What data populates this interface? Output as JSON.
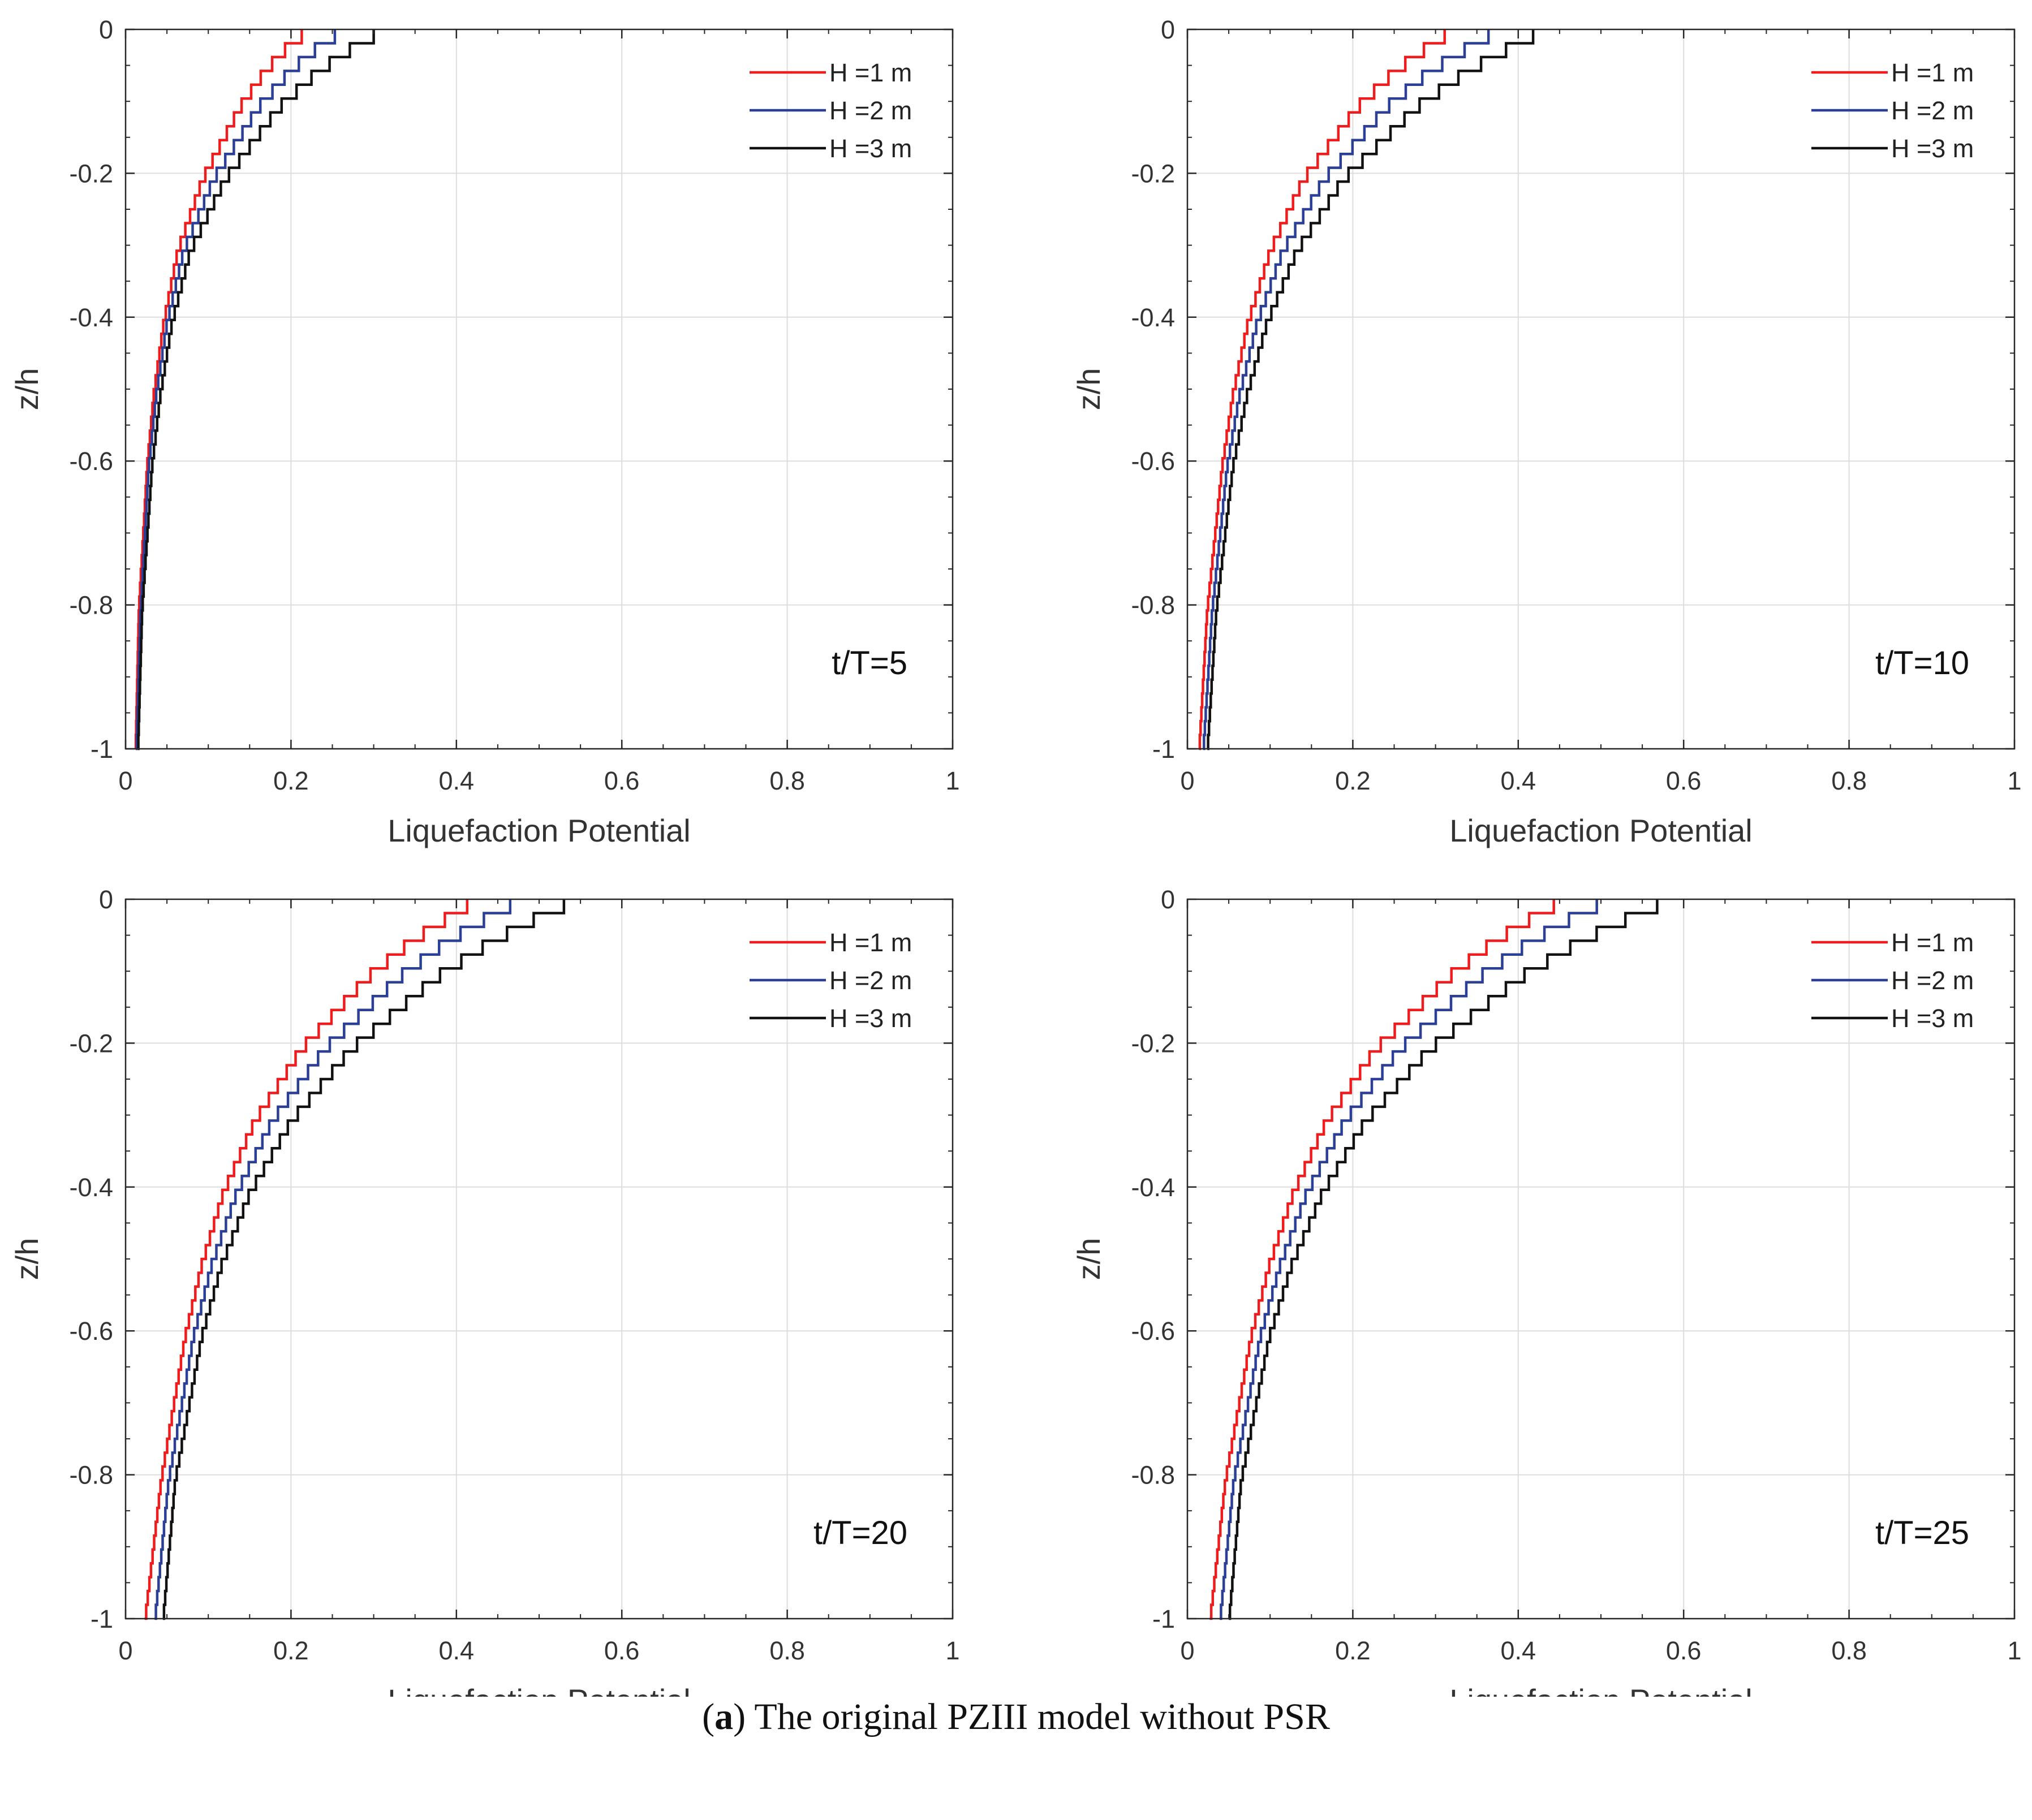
{
  "caption": {
    "open_paren": "(",
    "letter": "a",
    "text": ") The original PZIII model without PSR"
  },
  "colors": {
    "H1": "#ee1c1c",
    "H2": "#2b3f97",
    "H3": "#111111",
    "grid": "#dddddd",
    "axis": "#262626"
  },
  "chart_data": [
    {
      "type": "line",
      "annotation": "t/T=5",
      "xlabel": "Liquefaction Potential",
      "ylabel": "z/h",
      "xlim": [
        0,
        1
      ],
      "ylim": [
        -1,
        0
      ],
      "xticks": [
        "0",
        "0.2",
        "0.4",
        "0.6",
        "0.8",
        "1"
      ],
      "yticks": [
        "0",
        "-0.2",
        "-0.4",
        "-0.6",
        "-0.8",
        "-1"
      ],
      "legend": "top-right",
      "grid": true,
      "series": [
        {
          "name": "H =1 m",
          "z": [
            0,
            -0.02,
            -0.05,
            -0.1,
            -0.2,
            -0.3,
            -0.4,
            -0.5,
            -0.6,
            -0.8,
            -1.0
          ],
          "x": [
            0.213,
            0.192,
            0.168,
            0.138,
            0.093,
            0.063,
            0.046,
            0.034,
            0.026,
            0.016,
            0.012
          ]
        },
        {
          "name": "H =2 m",
          "z": [
            0,
            -0.02,
            -0.05,
            -0.1,
            -0.2,
            -0.3,
            -0.4,
            -0.5,
            -0.6,
            -0.8,
            -1.0
          ],
          "x": [
            0.253,
            0.228,
            0.198,
            0.16,
            0.106,
            0.07,
            0.05,
            0.037,
            0.028,
            0.018,
            0.013
          ]
        },
        {
          "name": "H =3 m",
          "z": [
            0,
            -0.02,
            -0.05,
            -0.1,
            -0.2,
            -0.3,
            -0.4,
            -0.5,
            -0.6,
            -0.8,
            -1.0
          ],
          "x": [
            0.3,
            0.27,
            0.232,
            0.185,
            0.12,
            0.078,
            0.056,
            0.042,
            0.032,
            0.02,
            0.015
          ]
        }
      ]
    },
    {
      "type": "line",
      "annotation": "t/T=10",
      "xlabel": "Liquefaction Potential",
      "ylabel": "z/h",
      "xlim": [
        0,
        1
      ],
      "ylim": [
        -1,
        0
      ],
      "xticks": [
        "0",
        "0.2",
        "0.4",
        "0.6",
        "0.8",
        "1"
      ],
      "yticks": [
        "0",
        "-0.2",
        "-0.4",
        "-0.6",
        "-0.8",
        "-1"
      ],
      "legend": "top-right",
      "grid": true,
      "series": [
        {
          "name": "H =1 m",
          "z": [
            0,
            -0.02,
            -0.05,
            -0.1,
            -0.2,
            -0.3,
            -0.4,
            -0.5,
            -0.6,
            -0.8,
            -1.0
          ],
          "x": [
            0.311,
            0.285,
            0.25,
            0.205,
            0.14,
            0.1,
            0.073,
            0.055,
            0.042,
            0.024,
            0.014
          ]
        },
        {
          "name": "H =2 m",
          "z": [
            0,
            -0.02,
            -0.05,
            -0.1,
            -0.2,
            -0.3,
            -0.4,
            -0.5,
            -0.6,
            -0.8,
            -1.0
          ],
          "x": [
            0.364,
            0.334,
            0.292,
            0.24,
            0.165,
            0.115,
            0.084,
            0.063,
            0.048,
            0.03,
            0.019
          ]
        },
        {
          "name": "H =3 m",
          "z": [
            0,
            -0.02,
            -0.05,
            -0.1,
            -0.2,
            -0.3,
            -0.4,
            -0.5,
            -0.6,
            -0.8,
            -1.0
          ],
          "x": [
            0.418,
            0.384,
            0.337,
            0.276,
            0.188,
            0.132,
            0.096,
            0.072,
            0.055,
            0.035,
            0.024
          ]
        }
      ]
    },
    {
      "type": "line",
      "annotation": "t/T=20",
      "xlabel": "Liquefaction Potential",
      "ylabel": "z/h",
      "xlim": [
        0,
        1
      ],
      "ylim": [
        -1,
        0
      ],
      "xticks": [
        "0",
        "0.2",
        "0.4",
        "0.6",
        "0.8",
        "1"
      ],
      "yticks": [
        "0",
        "-0.2",
        "-0.4",
        "-0.6",
        "-0.8",
        "-1"
      ],
      "legend": "top-right",
      "grid": true,
      "series": [
        {
          "name": "H =1 m",
          "z": [
            0,
            -0.02,
            -0.05,
            -0.1,
            -0.2,
            -0.3,
            -0.4,
            -0.5,
            -0.6,
            -0.8,
            -1.0
          ],
          "x": [
            0.413,
            0.385,
            0.345,
            0.292,
            0.212,
            0.156,
            0.118,
            0.092,
            0.072,
            0.043,
            0.023
          ]
        },
        {
          "name": "H =2 m",
          "z": [
            0,
            -0.02,
            -0.05,
            -0.1,
            -0.2,
            -0.3,
            -0.4,
            -0.5,
            -0.6,
            -0.8,
            -1.0
          ],
          "x": [
            0.465,
            0.432,
            0.388,
            0.33,
            0.24,
            0.177,
            0.134,
            0.104,
            0.082,
            0.052,
            0.035
          ]
        },
        {
          "name": "H =3 m",
          "z": [
            0,
            -0.02,
            -0.05,
            -0.1,
            -0.2,
            -0.3,
            -0.4,
            -0.5,
            -0.6,
            -0.8,
            -1.0
          ],
          "x": [
            0.53,
            0.492,
            0.442,
            0.375,
            0.272,
            0.2,
            0.15,
            0.116,
            0.092,
            0.06,
            0.045
          ]
        }
      ]
    },
    {
      "type": "line",
      "annotation": "t/T=25",
      "xlabel": "Liquefaction Potential",
      "ylabel": "z/h",
      "xlim": [
        0,
        1
      ],
      "ylim": [
        -1,
        0
      ],
      "xticks": [
        "0",
        "0.2",
        "0.4",
        "0.6",
        "0.8",
        "1"
      ],
      "yticks": [
        "0",
        "-0.2",
        "-0.4",
        "-0.6",
        "-0.8",
        "-1"
      ],
      "legend": "top-right",
      "grid": true,
      "series": [
        {
          "name": "H =1 m",
          "z": [
            0,
            -0.02,
            -0.05,
            -0.1,
            -0.2,
            -0.3,
            -0.4,
            -0.5,
            -0.6,
            -0.8,
            -1.0
          ],
          "x": [
            0.443,
            0.412,
            0.37,
            0.315,
            0.227,
            0.168,
            0.128,
            0.099,
            0.077,
            0.046,
            0.027
          ]
        },
        {
          "name": "H =2 m",
          "z": [
            0,
            -0.02,
            -0.05,
            -0.1,
            -0.2,
            -0.3,
            -0.4,
            -0.5,
            -0.6,
            -0.8,
            -1.0
          ],
          "x": [
            0.495,
            0.46,
            0.414,
            0.352,
            0.256,
            0.19,
            0.144,
            0.112,
            0.088,
            0.056,
            0.039
          ]
        },
        {
          "name": "H =3 m",
          "z": [
            0,
            -0.02,
            -0.05,
            -0.1,
            -0.2,
            -0.3,
            -0.4,
            -0.5,
            -0.6,
            -0.8,
            -1.0
          ],
          "x": [
            0.568,
            0.528,
            0.474,
            0.402,
            0.292,
            0.215,
            0.163,
            0.126,
            0.099,
            0.065,
            0.05
          ]
        }
      ]
    }
  ]
}
